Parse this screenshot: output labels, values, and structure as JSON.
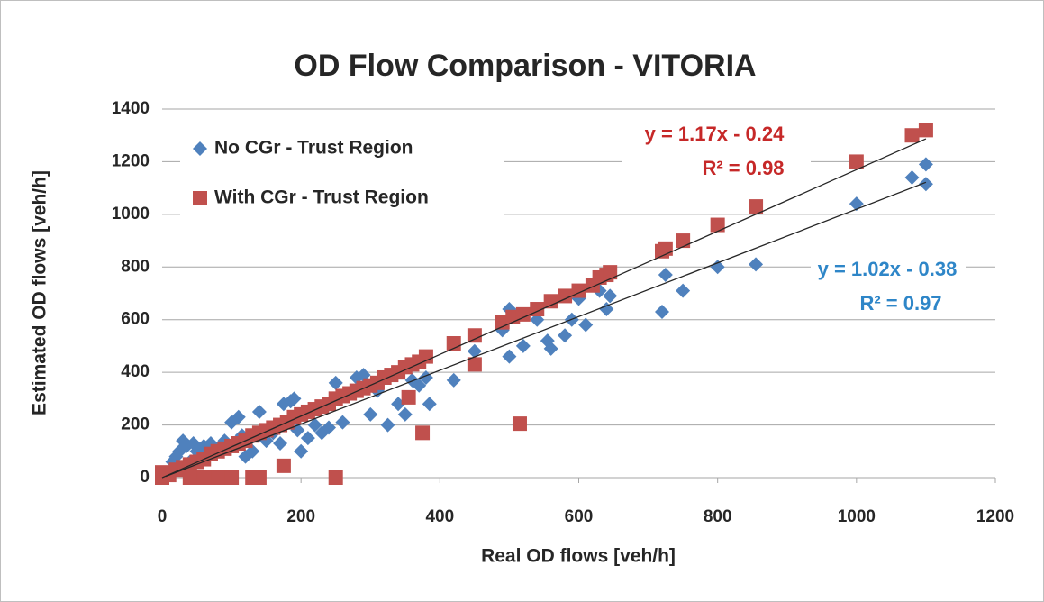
{
  "chart_data": {
    "type": "scatter",
    "title": "OD Flow Comparison - VITORIA",
    "x_label": "Real OD flows [veh/h]",
    "y_label": "Estimated OD flows [veh/h]",
    "xlim": [
      0,
      1200
    ],
    "xticks": [
      0,
      200,
      400,
      600,
      800,
      1000,
      1200
    ],
    "ylim": [
      0,
      1400
    ],
    "yticks": [
      0,
      200,
      400,
      600,
      800,
      1000,
      1200,
      1400
    ],
    "grid": true,
    "legend": "upper left",
    "series": [
      {
        "name": "No CGr - Trust Region",
        "color": "#4f81bd",
        "marker": "diamond",
        "x": [
          5,
          10,
          15,
          20,
          25,
          30,
          35,
          40,
          45,
          50,
          55,
          60,
          70,
          80,
          90,
          100,
          110,
          115,
          120,
          130,
          140,
          150,
          160,
          170,
          175,
          185,
          190,
          195,
          200,
          210,
          220,
          230,
          240,
          250,
          260,
          280,
          290,
          300,
          310,
          325,
          340,
          350,
          360,
          370,
          380,
          385,
          420,
          450,
          490,
          500,
          500,
          520,
          540,
          555,
          560,
          580,
          590,
          600,
          610,
          630,
          640,
          645,
          720,
          725,
          750,
          800,
          855,
          1000,
          1080,
          1100,
          1100
        ],
        "y": [
          0,
          20,
          60,
          80,
          100,
          140,
          120,
          60,
          130,
          100,
          80,
          120,
          130,
          110,
          140,
          210,
          230,
          160,
          80,
          100,
          250,
          140,
          170,
          130,
          280,
          290,
          300,
          180,
          100,
          150,
          200,
          170,
          190,
          360,
          210,
          380,
          390,
          240,
          330,
          200,
          280,
          240,
          370,
          350,
          380,
          280,
          370,
          480,
          560,
          640,
          460,
          500,
          600,
          520,
          490,
          540,
          600,
          680,
          580,
          710,
          640,
          690,
          630,
          770,
          710,
          800,
          810,
          1040,
          1140,
          1190,
          1115
        ]
      },
      {
        "name": "With CGr - Trust Region",
        "color": "#c0504d",
        "marker": "square",
        "x": [
          0,
          0,
          10,
          20,
          30,
          40,
          50,
          60,
          70,
          80,
          90,
          100,
          110,
          120,
          130,
          140,
          150,
          160,
          170,
          180,
          190,
          200,
          210,
          220,
          230,
          240,
          250,
          260,
          270,
          280,
          290,
          300,
          310,
          320,
          330,
          340,
          350,
          360,
          370,
          380,
          420,
          450,
          450,
          355,
          375,
          175,
          250,
          130,
          140,
          100,
          80,
          60,
          40,
          515,
          490,
          505,
          520,
          540,
          560,
          580,
          600,
          620,
          630,
          640,
          645,
          720,
          725,
          750,
          800,
          855,
          1000,
          1080,
          1100
        ],
        "y": [
          0,
          20,
          10,
          30,
          40,
          50,
          60,
          70,
          90,
          100,
          110,
          120,
          130,
          140,
          160,
          170,
          180,
          190,
          200,
          210,
          230,
          240,
          250,
          260,
          270,
          280,
          300,
          310,
          320,
          330,
          340,
          350,
          360,
          380,
          390,
          400,
          420,
          430,
          440,
          460,
          510,
          540,
          430,
          305,
          170,
          45,
          0,
          0,
          0,
          0,
          0,
          0,
          0,
          205,
          590,
          610,
          620,
          640,
          670,
          690,
          710,
          730,
          760,
          770,
          780,
          860,
          870,
          900,
          960,
          1030,
          1200,
          1300,
          1320
        ]
      }
    ],
    "trendlines": [
      {
        "equation": "y = 1.02x - 0.38",
        "r2": "R² = 0.97",
        "slope": 1.02,
        "intercept": -0.38,
        "color": "#2e86c8"
      },
      {
        "equation": "y = 1.17x - 0.24",
        "r2": "R² = 0.98",
        "slope": 1.17,
        "intercept": -0.24,
        "color": "#c62828"
      }
    ]
  }
}
